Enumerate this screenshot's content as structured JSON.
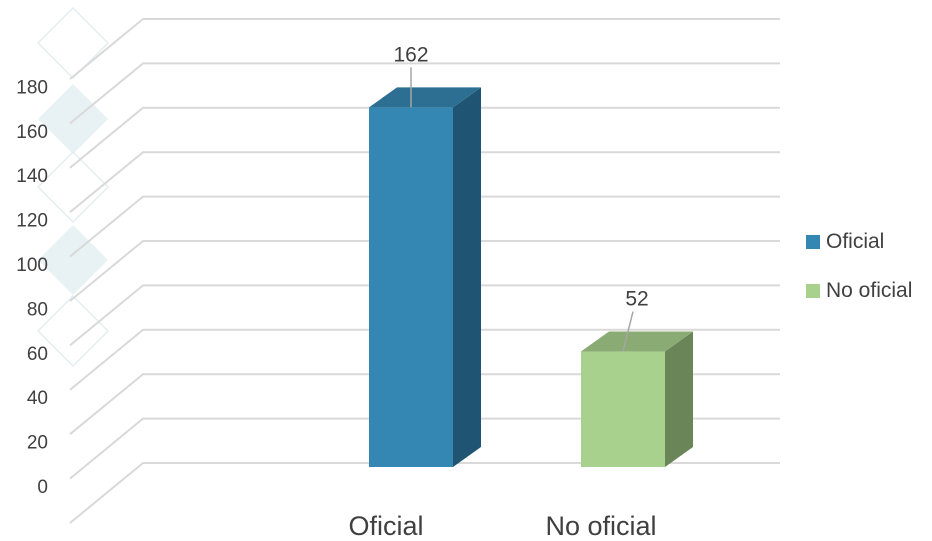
{
  "chart_data": {
    "type": "bar",
    "categories": [
      "Oficial",
      "No oficial"
    ],
    "values": [
      162,
      52
    ],
    "ylim": [
      0,
      180
    ],
    "yticks": [
      0,
      20,
      40,
      60,
      80,
      100,
      120,
      140,
      160,
      180
    ],
    "legend": [
      "Oficial",
      "No oficial"
    ],
    "legend_position": "right",
    "grid": true,
    "colors": {
      "Oficial": {
        "front": "#3487b3",
        "side": "#1f5573",
        "top": "#2c6f92"
      },
      "No oficial": {
        "front": "#a9d18e",
        "side": "#6a8658",
        "top": "#8aab73"
      },
      "grid": "#d9d9d9",
      "text": "#404040"
    }
  }
}
